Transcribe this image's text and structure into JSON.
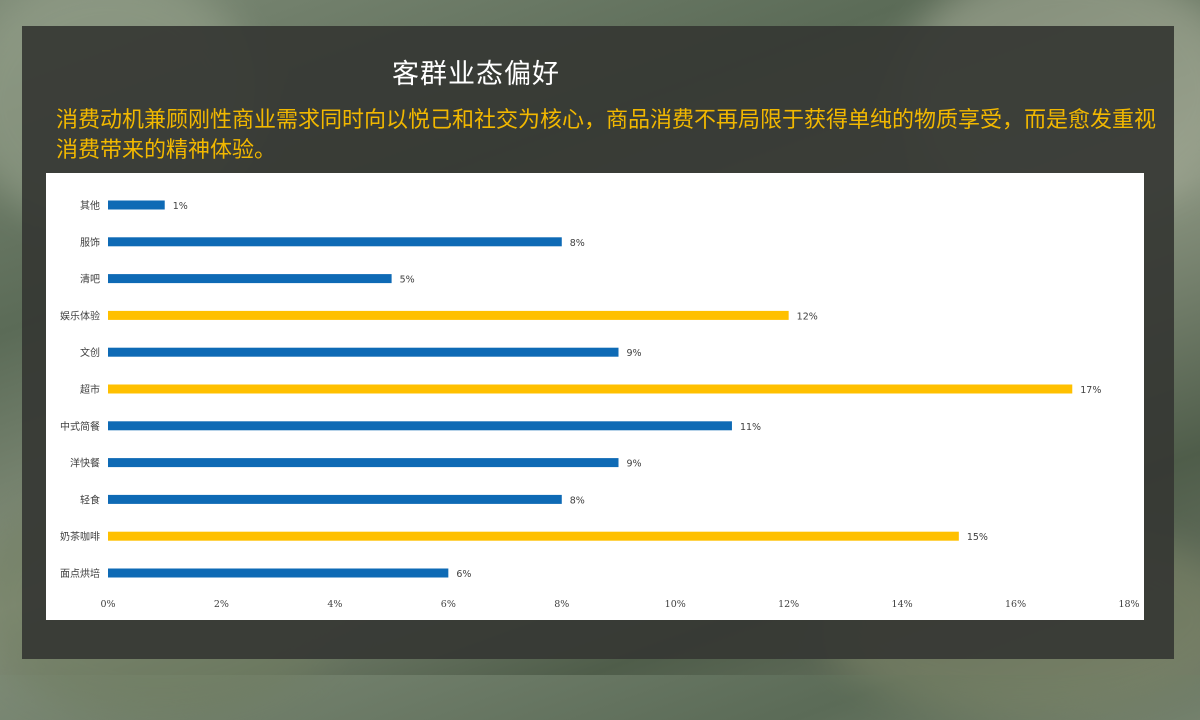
{
  "slide": {
    "title": "客群业态偏好",
    "subtitle": "消费动机兼顾刚性商业需求同时向以悦己和社交为核心，商品消费不再局限于获得单纯的物质享受，而是愈发重视消费带来的精神体验。"
  },
  "colors": {
    "blue": "#0e6ab5",
    "gold": "#ffc000",
    "subtitle": "#f2b800"
  },
  "chart_data": {
    "type": "bar",
    "orientation": "horizontal",
    "categories": [
      "其他",
      "服饰",
      "清吧",
      "娱乐体验",
      "文创",
      "超市",
      "中式简餐",
      "洋快餐",
      "轻食",
      "奶茶咖啡",
      "面点烘培"
    ],
    "values": [
      1,
      8,
      5,
      12,
      9,
      17,
      11,
      9,
      8,
      15,
      6
    ],
    "value_labels": [
      "1%",
      "8%",
      "5%",
      "12%",
      "9%",
      "17%",
      "11%",
      "9%",
      "8%",
      "15%",
      "6%"
    ],
    "bar_colors": [
      "blue",
      "blue",
      "blue",
      "gold",
      "blue",
      "gold",
      "blue",
      "blue",
      "blue",
      "gold",
      "blue"
    ],
    "xlim": [
      0,
      18
    ],
    "xticks": [
      0,
      2,
      4,
      6,
      8,
      10,
      12,
      14,
      16,
      18
    ],
    "xtick_labels": [
      "0%",
      "2%",
      "4%",
      "6%",
      "8%",
      "10%",
      "12%",
      "14%",
      "16%",
      "18%"
    ],
    "grid": false,
    "legend": "none",
    "title": "",
    "xlabel": "",
    "ylabel": ""
  }
}
